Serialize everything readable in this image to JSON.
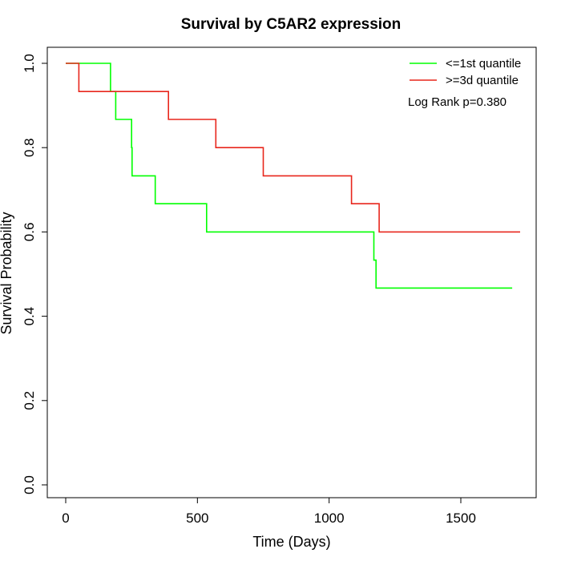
{
  "chart_data": {
    "type": "line",
    "title": "Survival by C5AR2 expression",
    "xlabel": "Time (Days)",
    "ylabel": "Survival Probability",
    "xlim": [
      0,
      1750
    ],
    "ylim": [
      0,
      1
    ],
    "x_ticks": [
      0,
      500,
      1000,
      1500
    ],
    "x_tick_labels": [
      "0",
      "500",
      "1000",
      "1500"
    ],
    "y_ticks": [
      0.0,
      0.2,
      0.4,
      0.6,
      0.8,
      1.0
    ],
    "y_tick_labels": [
      "0.0",
      "0.2",
      "0.4",
      "0.6",
      "0.8",
      "1.0"
    ],
    "grid": false,
    "legend_position": "top-right",
    "annotation": "Log Rank p=0.380",
    "series": [
      {
        "name": "<=1st quantile",
        "color": "#00ff00",
        "steps": [
          [
            0,
            1.0
          ],
          [
            170,
            1.0
          ],
          [
            170,
            0.933
          ],
          [
            190,
            0.933
          ],
          [
            190,
            0.867
          ],
          [
            250,
            0.867
          ],
          [
            250,
            0.8
          ],
          [
            252,
            0.8
          ],
          [
            252,
            0.733
          ],
          [
            340,
            0.733
          ],
          [
            340,
            0.667
          ],
          [
            535,
            0.667
          ],
          [
            535,
            0.6
          ],
          [
            1170,
            0.6
          ],
          [
            1170,
            0.533
          ],
          [
            1178,
            0.533
          ],
          [
            1178,
            0.467
          ],
          [
            1695,
            0.467
          ]
        ]
      },
      {
        "name": ">=3d quantile",
        "color": "#e8261c",
        "steps": [
          [
            0,
            1.0
          ],
          [
            50,
            1.0
          ],
          [
            50,
            0.933
          ],
          [
            390,
            0.933
          ],
          [
            390,
            0.867
          ],
          [
            570,
            0.867
          ],
          [
            570,
            0.8
          ],
          [
            750,
            0.8
          ],
          [
            750,
            0.733
          ],
          [
            1085,
            0.733
          ],
          [
            1085,
            0.667
          ],
          [
            1190,
            0.667
          ],
          [
            1190,
            0.6
          ],
          [
            1725,
            0.6
          ]
        ]
      }
    ]
  }
}
